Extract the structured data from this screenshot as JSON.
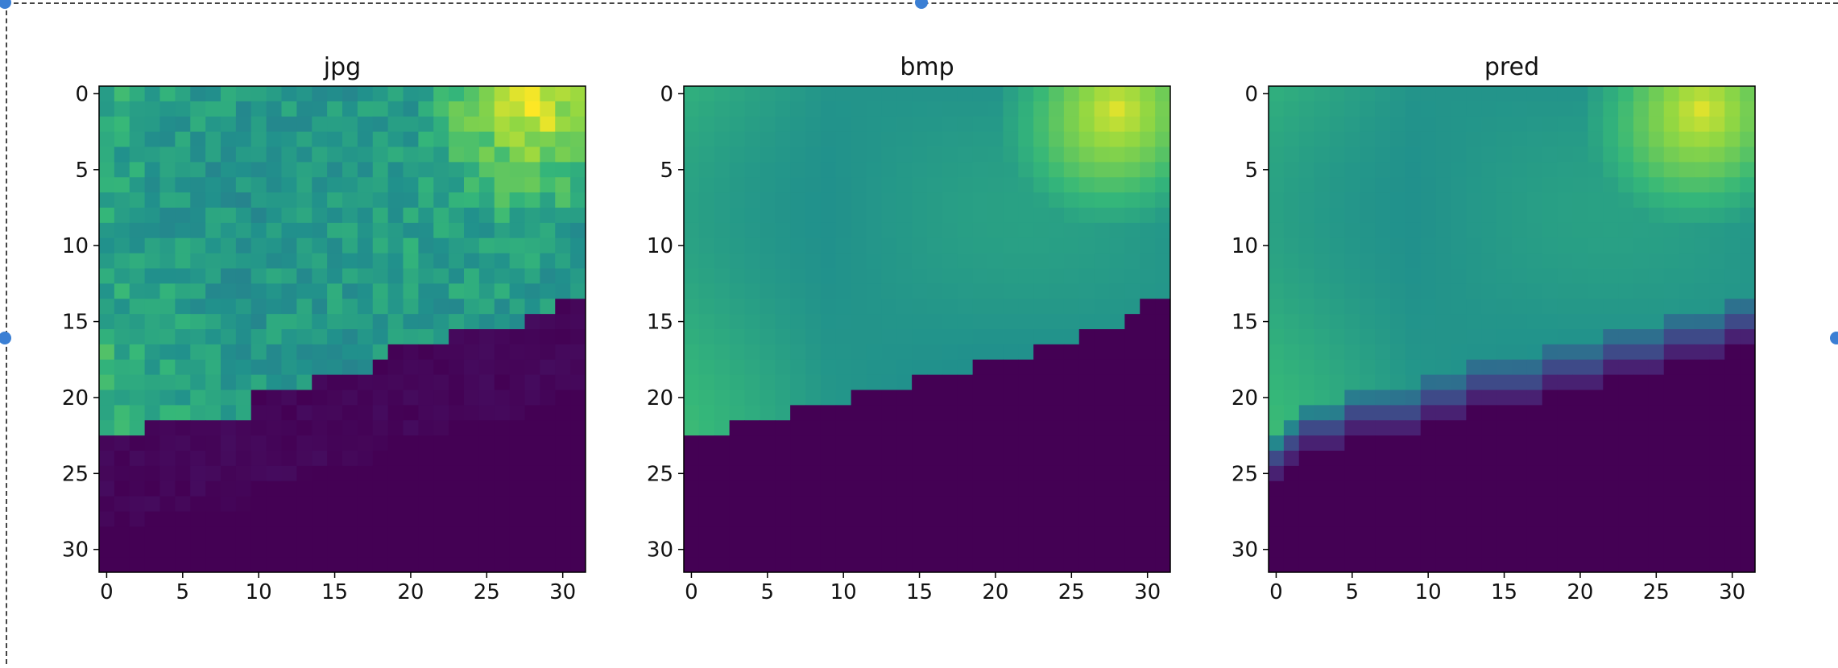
{
  "canvas": {
    "handles": [
      "top-left-handle",
      "top-center-handle",
      "left-middle-handle",
      "right-middle-handle"
    ]
  },
  "chart_data": [
    {
      "type": "heatmap",
      "title": "jpg",
      "xlabel": "",
      "ylabel": "",
      "xlim": [
        -0.5,
        31.5
      ],
      "ylim": [
        31.5,
        -0.5
      ],
      "xticks": [
        0,
        5,
        10,
        15,
        20,
        25,
        30
      ],
      "yticks": [
        0,
        5,
        10,
        15,
        20,
        25,
        30
      ],
      "colormap": "viridis",
      "boundary_row_per_column": [
        23,
        23,
        23,
        22,
        22,
        22,
        22,
        22,
        22,
        22,
        20,
        20,
        20,
        20,
        19,
        19,
        19,
        19,
        18,
        17,
        17,
        17,
        17,
        16,
        16,
        16,
        16,
        16,
        15,
        15,
        14,
        14
      ],
      "noise": "blocky"
    },
    {
      "type": "heatmap",
      "title": "bmp",
      "xlabel": "",
      "ylabel": "",
      "xlim": [
        -0.5,
        31.5
      ],
      "ylim": [
        31.5,
        -0.5
      ],
      "xticks": [
        0,
        5,
        10,
        15,
        20,
        25,
        30
      ],
      "yticks": [
        0,
        5,
        10,
        15,
        20,
        25,
        30
      ],
      "colormap": "viridis",
      "boundary_row_per_column": [
        23,
        23,
        23,
        22,
        22,
        22,
        22,
        21,
        21,
        21,
        21,
        20,
        20,
        20,
        20,
        19,
        19,
        19,
        19,
        18,
        18,
        18,
        18,
        17,
        17,
        17,
        16,
        16,
        16,
        15,
        14,
        14
      ],
      "noise": "none"
    },
    {
      "type": "heatmap",
      "title": "pred",
      "xlabel": "",
      "ylabel": "",
      "xlim": [
        -0.5,
        31.5
      ],
      "ylim": [
        31.5,
        -0.5
      ],
      "xticks": [
        0,
        5,
        10,
        15,
        20,
        25,
        30
      ],
      "yticks": [
        0,
        5,
        10,
        15,
        20,
        25,
        30
      ],
      "colormap": "viridis",
      "boundary_row_per_column": [
        24,
        23,
        22,
        22,
        22,
        21,
        21,
        21,
        21,
        21,
        20,
        20,
        20,
        19,
        19,
        19,
        19,
        19,
        18,
        18,
        18,
        18,
        17,
        17,
        17,
        17,
        16,
        16,
        16,
        16,
        15,
        15
      ],
      "noise": "smooth-edge"
    }
  ]
}
